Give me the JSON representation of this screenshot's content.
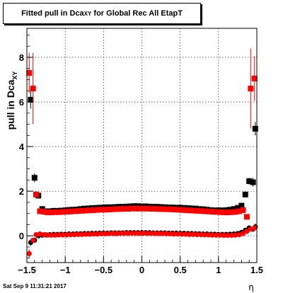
{
  "chart_data": {
    "type": "scatter",
    "title_main": "Fitted pull in Dca",
    "title_sub": "XY",
    "title_tail": " for Global Rec All EtapT",
    "xlabel": "η",
    "ylabel_main": "pull in Dca",
    "ylabel_sub": "XY",
    "xlim": [
      -1.5,
      1.5
    ],
    "ylim": [
      -1.2,
      9.3
    ],
    "x_ticks": [
      "−1.5",
      "−1",
      "−0.5",
      "0",
      "0.5",
      "1",
      "1.5"
    ],
    "x_tick_values": [
      -1.5,
      -1,
      -0.5,
      0,
      0.5,
      1,
      1.5
    ],
    "y_ticks": [
      "0",
      "2",
      "4",
      "6",
      "8"
    ],
    "y_tick_values": [
      0,
      2,
      4,
      6,
      8
    ],
    "grid": true,
    "series": [
      {
        "color": "#000000",
        "points": [
          {
            "x": -1.45,
            "mean": -0.3,
            "err": 0.15,
            "sigma": 6.1,
            "serr": 0.4
          },
          {
            "x": -1.4,
            "mean": -0.2,
            "err": 0.1,
            "sigma": 2.6,
            "serr": 0.2
          },
          {
            "x": -1.35,
            "mean": 0.0,
            "err": 0.05,
            "sigma": 1.8,
            "serr": 0.1
          },
          {
            "x": -1.3,
            "mean": 0.03,
            "err": 0.03,
            "sigma": 1.2,
            "serr": 0.05
          },
          {
            "x": -1.25,
            "mean": 0.04,
            "err": 0.02,
            "sigma": 1.1,
            "serr": 0.03
          },
          {
            "x": -1.2,
            "mean": 0.05,
            "err": 0.02,
            "sigma": 1.1,
            "serr": 0.03
          },
          {
            "x": -1.15,
            "mean": 0.06,
            "err": 0.02,
            "sigma": 1.12,
            "serr": 0.03
          },
          {
            "x": -1.1,
            "mean": 0.06,
            "err": 0.02,
            "sigma": 1.12,
            "serr": 0.03
          },
          {
            "x": -1.05,
            "mean": 0.07,
            "err": 0.02,
            "sigma": 1.13,
            "serr": 0.03
          },
          {
            "x": -1.0,
            "mean": 0.07,
            "err": 0.02,
            "sigma": 1.14,
            "serr": 0.03
          },
          {
            "x": -0.95,
            "mean": 0.08,
            "err": 0.02,
            "sigma": 1.16,
            "serr": 0.03
          },
          {
            "x": -0.9,
            "mean": 0.08,
            "err": 0.02,
            "sigma": 1.17,
            "serr": 0.03
          },
          {
            "x": -0.85,
            "mean": 0.09,
            "err": 0.02,
            "sigma": 1.18,
            "serr": 0.03
          },
          {
            "x": -0.8,
            "mean": 0.09,
            "err": 0.02,
            "sigma": 1.2,
            "serr": 0.03
          },
          {
            "x": -0.75,
            "mean": 0.1,
            "err": 0.02,
            "sigma": 1.22,
            "serr": 0.03
          },
          {
            "x": -0.7,
            "mean": 0.1,
            "err": 0.02,
            "sigma": 1.23,
            "serr": 0.03
          },
          {
            "x": -0.65,
            "mean": 0.11,
            "err": 0.02,
            "sigma": 1.24,
            "serr": 0.03
          },
          {
            "x": -0.6,
            "mean": 0.11,
            "err": 0.02,
            "sigma": 1.25,
            "serr": 0.03
          },
          {
            "x": -0.55,
            "mean": 0.12,
            "err": 0.02,
            "sigma": 1.26,
            "serr": 0.03
          },
          {
            "x": -0.5,
            "mean": 0.12,
            "err": 0.02,
            "sigma": 1.27,
            "serr": 0.03
          },
          {
            "x": -0.45,
            "mean": 0.12,
            "err": 0.02,
            "sigma": 1.28,
            "serr": 0.03
          },
          {
            "x": -0.4,
            "mean": 0.13,
            "err": 0.02,
            "sigma": 1.28,
            "serr": 0.03
          },
          {
            "x": -0.35,
            "mean": 0.13,
            "err": 0.02,
            "sigma": 1.29,
            "serr": 0.03
          },
          {
            "x": -0.3,
            "mean": 0.13,
            "err": 0.02,
            "sigma": 1.3,
            "serr": 0.03
          },
          {
            "x": -0.25,
            "mean": 0.13,
            "err": 0.02,
            "sigma": 1.3,
            "serr": 0.03
          },
          {
            "x": -0.2,
            "mean": 0.14,
            "err": 0.02,
            "sigma": 1.31,
            "serr": 0.03
          },
          {
            "x": -0.15,
            "mean": 0.14,
            "err": 0.02,
            "sigma": 1.32,
            "serr": 0.03
          },
          {
            "x": -0.1,
            "mean": 0.14,
            "err": 0.02,
            "sigma": 1.33,
            "serr": 0.03
          },
          {
            "x": -0.05,
            "mean": 0.14,
            "err": 0.02,
            "sigma": 1.33,
            "serr": 0.03
          },
          {
            "x": 0.0,
            "mean": 0.14,
            "err": 0.02,
            "sigma": 1.32,
            "serr": 0.03
          },
          {
            "x": 0.05,
            "mean": 0.14,
            "err": 0.02,
            "sigma": 1.32,
            "serr": 0.03
          },
          {
            "x": 0.1,
            "mean": 0.14,
            "err": 0.02,
            "sigma": 1.31,
            "serr": 0.03
          },
          {
            "x": 0.15,
            "mean": 0.13,
            "err": 0.02,
            "sigma": 1.3,
            "serr": 0.03
          },
          {
            "x": 0.2,
            "mean": 0.13,
            "err": 0.02,
            "sigma": 1.3,
            "serr": 0.03
          },
          {
            "x": 0.25,
            "mean": 0.13,
            "err": 0.02,
            "sigma": 1.29,
            "serr": 0.03
          },
          {
            "x": 0.3,
            "mean": 0.13,
            "err": 0.02,
            "sigma": 1.28,
            "serr": 0.03
          },
          {
            "x": 0.35,
            "mean": 0.12,
            "err": 0.02,
            "sigma": 1.27,
            "serr": 0.03
          },
          {
            "x": 0.4,
            "mean": 0.12,
            "err": 0.02,
            "sigma": 1.27,
            "serr": 0.03
          },
          {
            "x": 0.45,
            "mean": 0.12,
            "err": 0.02,
            "sigma": 1.26,
            "serr": 0.03
          },
          {
            "x": 0.5,
            "mean": 0.11,
            "err": 0.02,
            "sigma": 1.26,
            "serr": 0.03
          },
          {
            "x": 0.55,
            "mean": 0.11,
            "err": 0.02,
            "sigma": 1.25,
            "serr": 0.03
          },
          {
            "x": 0.6,
            "mean": 0.1,
            "err": 0.02,
            "sigma": 1.24,
            "serr": 0.03
          },
          {
            "x": 0.65,
            "mean": 0.1,
            "err": 0.02,
            "sigma": 1.23,
            "serr": 0.03
          },
          {
            "x": 0.7,
            "mean": 0.09,
            "err": 0.02,
            "sigma": 1.22,
            "serr": 0.03
          },
          {
            "x": 0.75,
            "mean": 0.09,
            "err": 0.02,
            "sigma": 1.2,
            "serr": 0.03
          },
          {
            "x": 0.8,
            "mean": 0.08,
            "err": 0.02,
            "sigma": 1.19,
            "serr": 0.03
          },
          {
            "x": 0.85,
            "mean": 0.08,
            "err": 0.02,
            "sigma": 1.17,
            "serr": 0.03
          },
          {
            "x": 0.9,
            "mean": 0.07,
            "err": 0.02,
            "sigma": 1.15,
            "serr": 0.03
          },
          {
            "x": 0.95,
            "mean": 0.07,
            "err": 0.02,
            "sigma": 1.14,
            "serr": 0.03
          },
          {
            "x": 1.0,
            "mean": 0.06,
            "err": 0.02,
            "sigma": 1.14,
            "serr": 0.03
          },
          {
            "x": 1.05,
            "mean": 0.06,
            "err": 0.02,
            "sigma": 1.14,
            "serr": 0.03
          },
          {
            "x": 1.1,
            "mean": 0.06,
            "err": 0.02,
            "sigma": 1.15,
            "serr": 0.03
          },
          {
            "x": 1.15,
            "mean": 0.07,
            "err": 0.02,
            "sigma": 1.17,
            "serr": 0.03
          },
          {
            "x": 1.2,
            "mean": 0.08,
            "err": 0.02,
            "sigma": 1.2,
            "serr": 0.03
          },
          {
            "x": 1.25,
            "mean": 0.1,
            "err": 0.03,
            "sigma": 1.25,
            "serr": 0.04
          },
          {
            "x": 1.3,
            "mean": 0.15,
            "err": 0.04,
            "sigma": 1.35,
            "serr": 0.05
          },
          {
            "x": 1.35,
            "mean": 0.25,
            "err": 0.06,
            "sigma": 1.85,
            "serr": 0.1
          },
          {
            "x": 1.4,
            "mean": 0.35,
            "err": 0.1,
            "sigma": 2.45,
            "serr": 0.15
          },
          {
            "x": 1.45,
            "mean": 0.3,
            "err": 0.12,
            "sigma": 2.4,
            "serr": 0.2
          },
          {
            "x": 1.48,
            "mean": 0.4,
            "err": 0.15,
            "sigma": 4.8,
            "serr": 0.3
          }
        ]
      },
      {
        "color": "#ff0000",
        "points": [
          {
            "x": -1.47,
            "mean": -0.8,
            "err": 0.2,
            "sigma": 7.3,
            "serr": 0.9
          },
          {
            "x": -1.42,
            "mean": -0.2,
            "err": 0.1,
            "sigma": 6.6,
            "serr": 1.6
          },
          {
            "x": -1.38,
            "mean": 0.05,
            "err": 0.08,
            "sigma": 1.85,
            "serr": 0.15
          },
          {
            "x": -1.33,
            "mean": 0.08,
            "err": 0.03,
            "sigma": 1.1,
            "serr": 0.05
          },
          {
            "x": -1.28,
            "mean": 0.05,
            "err": 0.02,
            "sigma": 1.08,
            "serr": 0.03
          },
          {
            "x": -1.23,
            "mean": 0.03,
            "err": 0.02,
            "sigma": 1.05,
            "serr": 0.03
          },
          {
            "x": -1.18,
            "mean": 0.03,
            "err": 0.02,
            "sigma": 1.05,
            "serr": 0.03
          },
          {
            "x": -1.13,
            "mean": 0.03,
            "err": 0.02,
            "sigma": 1.06,
            "serr": 0.03
          },
          {
            "x": -1.08,
            "mean": 0.04,
            "err": 0.02,
            "sigma": 1.06,
            "serr": 0.03
          },
          {
            "x": -1.03,
            "mean": 0.04,
            "err": 0.02,
            "sigma": 1.07,
            "serr": 0.03
          },
          {
            "x": -0.98,
            "mean": 0.04,
            "err": 0.02,
            "sigma": 1.08,
            "serr": 0.03
          },
          {
            "x": -0.93,
            "mean": 0.05,
            "err": 0.02,
            "sigma": 1.09,
            "serr": 0.03
          },
          {
            "x": -0.88,
            "mean": 0.05,
            "err": 0.02,
            "sigma": 1.1,
            "serr": 0.03
          },
          {
            "x": -0.83,
            "mean": 0.06,
            "err": 0.02,
            "sigma": 1.11,
            "serr": 0.03
          },
          {
            "x": -0.78,
            "mean": 0.06,
            "err": 0.02,
            "sigma": 1.12,
            "serr": 0.03
          },
          {
            "x": -0.73,
            "mean": 0.07,
            "err": 0.02,
            "sigma": 1.13,
            "serr": 0.03
          },
          {
            "x": -0.68,
            "mean": 0.07,
            "err": 0.02,
            "sigma": 1.14,
            "serr": 0.03
          },
          {
            "x": -0.63,
            "mean": 0.08,
            "err": 0.02,
            "sigma": 1.15,
            "serr": 0.03
          },
          {
            "x": -0.58,
            "mean": 0.08,
            "err": 0.02,
            "sigma": 1.16,
            "serr": 0.03
          },
          {
            "x": -0.53,
            "mean": 0.09,
            "err": 0.02,
            "sigma": 1.17,
            "serr": 0.03
          },
          {
            "x": -0.48,
            "mean": 0.09,
            "err": 0.02,
            "sigma": 1.17,
            "serr": 0.03
          },
          {
            "x": -0.43,
            "mean": 0.1,
            "err": 0.02,
            "sigma": 1.18,
            "serr": 0.03
          },
          {
            "x": -0.38,
            "mean": 0.1,
            "err": 0.02,
            "sigma": 1.19,
            "serr": 0.03
          },
          {
            "x": -0.33,
            "mean": 0.1,
            "err": 0.02,
            "sigma": 1.2,
            "serr": 0.03
          },
          {
            "x": -0.28,
            "mean": 0.11,
            "err": 0.02,
            "sigma": 1.2,
            "serr": 0.03
          },
          {
            "x": -0.23,
            "mean": 0.11,
            "err": 0.02,
            "sigma": 1.21,
            "serr": 0.03
          },
          {
            "x": -0.18,
            "mean": 0.11,
            "err": 0.02,
            "sigma": 1.21,
            "serr": 0.03
          },
          {
            "x": -0.13,
            "mean": 0.11,
            "err": 0.02,
            "sigma": 1.22,
            "serr": 0.03
          },
          {
            "x": -0.08,
            "mean": 0.11,
            "err": 0.02,
            "sigma": 1.22,
            "serr": 0.03
          },
          {
            "x": -0.03,
            "mean": 0.11,
            "err": 0.02,
            "sigma": 1.22,
            "serr": 0.03
          },
          {
            "x": 0.02,
            "mean": 0.11,
            "err": 0.02,
            "sigma": 1.22,
            "serr": 0.03
          },
          {
            "x": 0.07,
            "mean": 0.11,
            "err": 0.02,
            "sigma": 1.22,
            "serr": 0.03
          },
          {
            "x": 0.12,
            "mean": 0.11,
            "err": 0.02,
            "sigma": 1.21,
            "serr": 0.03
          },
          {
            "x": 0.17,
            "mean": 0.1,
            "err": 0.02,
            "sigma": 1.21,
            "serr": 0.03
          },
          {
            "x": 0.22,
            "mean": 0.1,
            "err": 0.02,
            "sigma": 1.2,
            "serr": 0.03
          },
          {
            "x": 0.27,
            "mean": 0.1,
            "err": 0.02,
            "sigma": 1.2,
            "serr": 0.03
          },
          {
            "x": 0.32,
            "mean": 0.09,
            "err": 0.02,
            "sigma": 1.19,
            "serr": 0.03
          },
          {
            "x": 0.37,
            "mean": 0.09,
            "err": 0.02,
            "sigma": 1.19,
            "serr": 0.03
          },
          {
            "x": 0.42,
            "mean": 0.08,
            "err": 0.02,
            "sigma": 1.18,
            "serr": 0.03
          },
          {
            "x": 0.47,
            "mean": 0.08,
            "err": 0.02,
            "sigma": 1.17,
            "serr": 0.03
          },
          {
            "x": 0.52,
            "mean": 0.07,
            "err": 0.02,
            "sigma": 1.16,
            "serr": 0.03
          },
          {
            "x": 0.57,
            "mean": 0.07,
            "err": 0.02,
            "sigma": 1.15,
            "serr": 0.03
          },
          {
            "x": 0.62,
            "mean": 0.06,
            "err": 0.02,
            "sigma": 1.14,
            "serr": 0.03
          },
          {
            "x": 0.67,
            "mean": 0.06,
            "err": 0.02,
            "sigma": 1.13,
            "serr": 0.03
          },
          {
            "x": 0.72,
            "mean": 0.05,
            "err": 0.02,
            "sigma": 1.12,
            "serr": 0.03
          },
          {
            "x": 0.77,
            "mean": 0.05,
            "err": 0.02,
            "sigma": 1.11,
            "serr": 0.03
          },
          {
            "x": 0.82,
            "mean": 0.04,
            "err": 0.02,
            "sigma": 1.1,
            "serr": 0.03
          },
          {
            "x": 0.87,
            "mean": 0.04,
            "err": 0.02,
            "sigma": 1.09,
            "serr": 0.03
          },
          {
            "x": 0.92,
            "mean": 0.03,
            "err": 0.02,
            "sigma": 1.08,
            "serr": 0.03
          },
          {
            "x": 0.97,
            "mean": 0.03,
            "err": 0.02,
            "sigma": 1.07,
            "serr": 0.03
          },
          {
            "x": 1.02,
            "mean": 0.03,
            "err": 0.02,
            "sigma": 1.06,
            "serr": 0.03
          },
          {
            "x": 1.07,
            "mean": 0.02,
            "err": 0.02,
            "sigma": 1.05,
            "serr": 0.03
          },
          {
            "x": 1.12,
            "mean": 0.02,
            "err": 0.02,
            "sigma": 1.05,
            "serr": 0.03
          },
          {
            "x": 1.17,
            "mean": 0.02,
            "err": 0.02,
            "sigma": 1.06,
            "serr": 0.03
          },
          {
            "x": 1.22,
            "mean": 0.03,
            "err": 0.02,
            "sigma": 1.07,
            "serr": 0.03
          },
          {
            "x": 1.27,
            "mean": 0.05,
            "err": 0.03,
            "sigma": 1.1,
            "serr": 0.04
          },
          {
            "x": 1.32,
            "mean": 0.1,
            "err": 0.04,
            "sigma": 1.15,
            "serr": 0.06
          },
          {
            "x": 1.37,
            "mean": 0.2,
            "err": 0.06,
            "sigma": 0.85,
            "serr": 0.1
          },
          {
            "x": 1.42,
            "mean": 0.3,
            "err": 0.1,
            "sigma": 6.6,
            "serr": 1.8
          },
          {
            "x": 1.47,
            "mean": 0.35,
            "err": 0.15,
            "sigma": 7.05,
            "serr": 1.0
          }
        ]
      }
    ]
  },
  "datestamp": "Sat Sep  9 11:31:21 2017"
}
